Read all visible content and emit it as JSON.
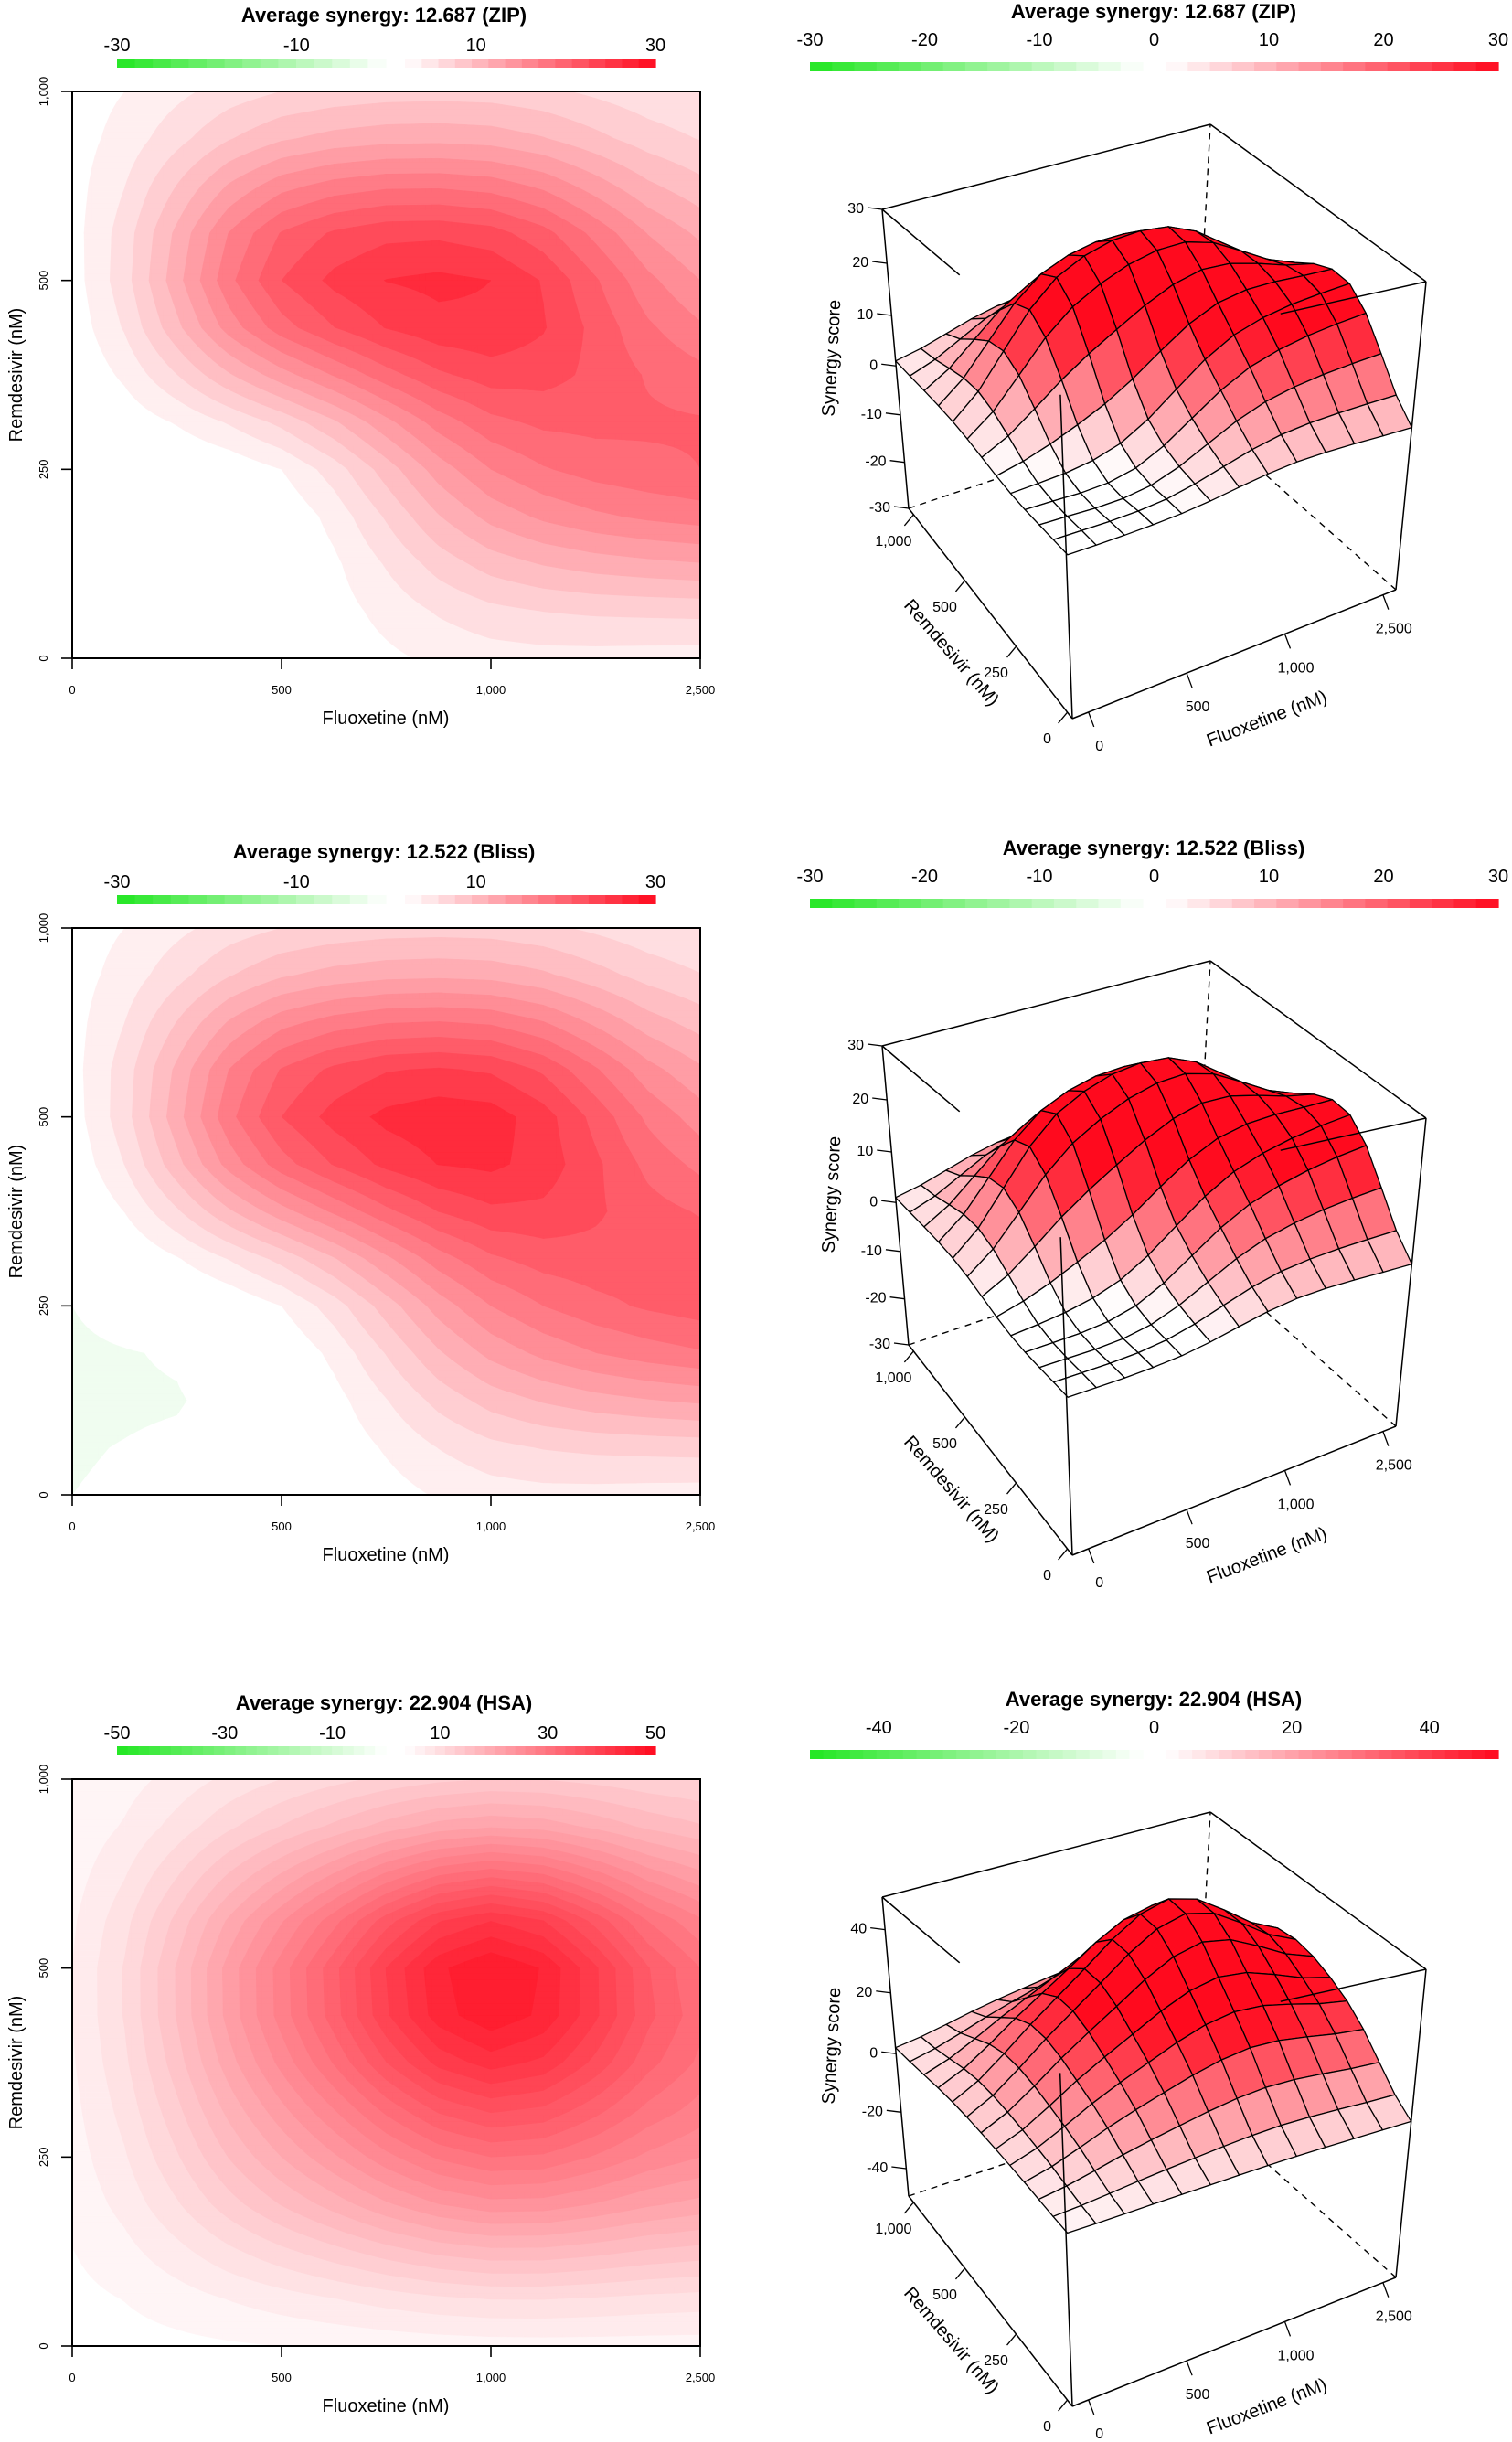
{
  "figure": {
    "description": "Synergy maps of Fluoxetine and Remdesivir combination (2D contour and 3D surface)"
  },
  "chart_data": [
    {
      "type": "heatmap",
      "panel": "zip",
      "title": "Average synergy: 12.687 (ZIP)",
      "method": "ZIP",
      "average_synergy": 12.687,
      "xlabel": "Fluoxetine (nM)",
      "ylabel": "Remdesivir (nM)",
      "x_doses": [
        "0",
        "500",
        "1,000",
        "2,500"
      ],
      "y_doses": [
        "0",
        "250",
        "500",
        "1,000"
      ],
      "colorbar_ticks": [
        "-30",
        "-10",
        "10",
        "30"
      ],
      "colorbar_tick_values": [
        -30,
        -10,
        10,
        30
      ],
      "color_range": [
        -30,
        30
      ],
      "low_color": "#22e622",
      "mid_color": "#ffffff",
      "high_color": "#ff0a1e",
      "matrix_rows_by_remdesivir": [
        [
          -1,
          0,
          3,
          3
        ],
        [
          -1,
          2,
          16,
          20
        ],
        [
          1,
          22,
          26,
          14
        ],
        [
          1,
          6,
          7,
          4
        ]
      ]
    },
    {
      "type": "surface3d",
      "panel": "zip",
      "title": "Average synergy: 12.687 (ZIP)",
      "method": "ZIP",
      "average_synergy": 12.687,
      "xlabel": "Fluoxetine (nM)",
      "ylabel": "Remdesivir (nM)",
      "zlabel": "Synergy score",
      "x_doses": [
        "0",
        "500",
        "1,000",
        "2,500"
      ],
      "y_doses": [
        "0",
        "250",
        "500",
        "1,000"
      ],
      "zlim": [
        -30,
        30
      ],
      "z_ticks": [
        "-30",
        "-20",
        "-10",
        "0",
        "10",
        "20",
        "30"
      ],
      "z_tick_values": [
        -30,
        -20,
        -10,
        0,
        10,
        20,
        30
      ],
      "colorbar_ticks": [
        "-30",
        "-20",
        "-10",
        "0",
        "10",
        "20",
        "30"
      ],
      "colorbar_tick_values": [
        -30,
        -20,
        -10,
        0,
        10,
        20,
        30
      ],
      "color_range": [
        -30,
        30
      ],
      "matrix_rows_by_remdesivir": [
        [
          -1,
          0,
          3,
          3
        ],
        [
          -1,
          2,
          16,
          20
        ],
        [
          1,
          22,
          26,
          14
        ],
        [
          1,
          6,
          7,
          4
        ]
      ]
    },
    {
      "type": "heatmap",
      "panel": "bliss",
      "title": "Average synergy: 12.522 (Bliss)",
      "method": "Bliss",
      "average_synergy": 12.522,
      "xlabel": "Fluoxetine (nM)",
      "ylabel": "Remdesivir (nM)",
      "x_doses": [
        "0",
        "500",
        "1,000",
        "2,500"
      ],
      "y_doses": [
        "0",
        "250",
        "500",
        "1,000"
      ],
      "colorbar_ticks": [
        "-30",
        "-10",
        "10",
        "30"
      ],
      "colorbar_tick_values": [
        -30,
        -10,
        10,
        30
      ],
      "color_range": [
        -30,
        30
      ],
      "low_color": "#22e622",
      "mid_color": "#ffffff",
      "high_color": "#ff0a1e",
      "matrix_rows_by_remdesivir": [
        [
          -2,
          -1,
          3,
          3
        ],
        [
          -2,
          2,
          16,
          21
        ],
        [
          1,
          22,
          27,
          15
        ],
        [
          1,
          6,
          7,
          4
        ]
      ]
    },
    {
      "type": "surface3d",
      "panel": "bliss",
      "title": "Average synergy: 12.522 (Bliss)",
      "method": "Bliss",
      "average_synergy": 12.522,
      "xlabel": "Fluoxetine (nM)",
      "ylabel": "Remdesivir (nM)",
      "zlabel": "Synergy score",
      "x_doses": [
        "0",
        "500",
        "1,000",
        "2,500"
      ],
      "y_doses": [
        "0",
        "250",
        "500",
        "1,000"
      ],
      "zlim": [
        -30,
        30
      ],
      "z_ticks": [
        "-30",
        "-20",
        "-10",
        "0",
        "10",
        "20",
        "30"
      ],
      "z_tick_values": [
        -30,
        -20,
        -10,
        0,
        10,
        20,
        30
      ],
      "colorbar_ticks": [
        "-30",
        "-20",
        "-10",
        "0",
        "10",
        "20",
        "30"
      ],
      "colorbar_tick_values": [
        -30,
        -20,
        -10,
        0,
        10,
        20,
        30
      ],
      "color_range": [
        -30,
        30
      ],
      "matrix_rows_by_remdesivir": [
        [
          -2,
          -1,
          3,
          3
        ],
        [
          -2,
          2,
          16,
          21
        ],
        [
          1,
          22,
          27,
          15
        ],
        [
          1,
          6,
          7,
          4
        ]
      ]
    },
    {
      "type": "heatmap",
      "panel": "hsa",
      "title": "Average synergy: 22.904 (HSA)",
      "method": "HSA",
      "average_synergy": 22.904,
      "xlabel": "Fluoxetine (nM)",
      "ylabel": "Remdesivir (nM)",
      "x_doses": [
        "0",
        "500",
        "1,000",
        "2,500"
      ],
      "y_doses": [
        "0",
        "250",
        "500",
        "1,000"
      ],
      "colorbar_ticks": [
        "-50",
        "-30",
        "-10",
        "10",
        "30",
        "50"
      ],
      "colorbar_tick_values": [
        -50,
        -30,
        -10,
        10,
        30,
        50
      ],
      "color_range": [
        -50,
        50
      ],
      "low_color": "#22e622",
      "mid_color": "#ffffff",
      "high_color": "#ff0a1e",
      "matrix_rows_by_remdesivir": [
        [
          1,
          2,
          3,
          3
        ],
        [
          3,
          18,
          30,
          24
        ],
        [
          4,
          27,
          48,
          30
        ],
        [
          2,
          8,
          12,
          10
        ]
      ]
    },
    {
      "type": "surface3d",
      "panel": "hsa",
      "title": "Average synergy: 22.904 (HSA)",
      "method": "HSA",
      "average_synergy": 22.904,
      "xlabel": "Fluoxetine (nM)",
      "ylabel": "Remdesivir (nM)",
      "zlabel": "Synergy score",
      "x_doses": [
        "0",
        "500",
        "1,000",
        "2,500"
      ],
      "y_doses": [
        "0",
        "250",
        "500",
        "1,000"
      ],
      "zlim": [
        -50,
        50
      ],
      "z_ticks": [
        "-40",
        "-20",
        "0",
        "20",
        "40"
      ],
      "z_tick_values": [
        -40,
        -20,
        0,
        20,
        40
      ],
      "colorbar_ticks": [
        "-40",
        "-20",
        "0",
        "20",
        "40"
      ],
      "colorbar_tick_values": [
        -40,
        -20,
        0,
        20,
        40
      ],
      "color_range": [
        -50,
        50
      ],
      "matrix_rows_by_remdesivir": [
        [
          1,
          2,
          3,
          3
        ],
        [
          3,
          18,
          30,
          24
        ],
        [
          4,
          27,
          48,
          30
        ],
        [
          2,
          8,
          12,
          10
        ]
      ]
    }
  ]
}
